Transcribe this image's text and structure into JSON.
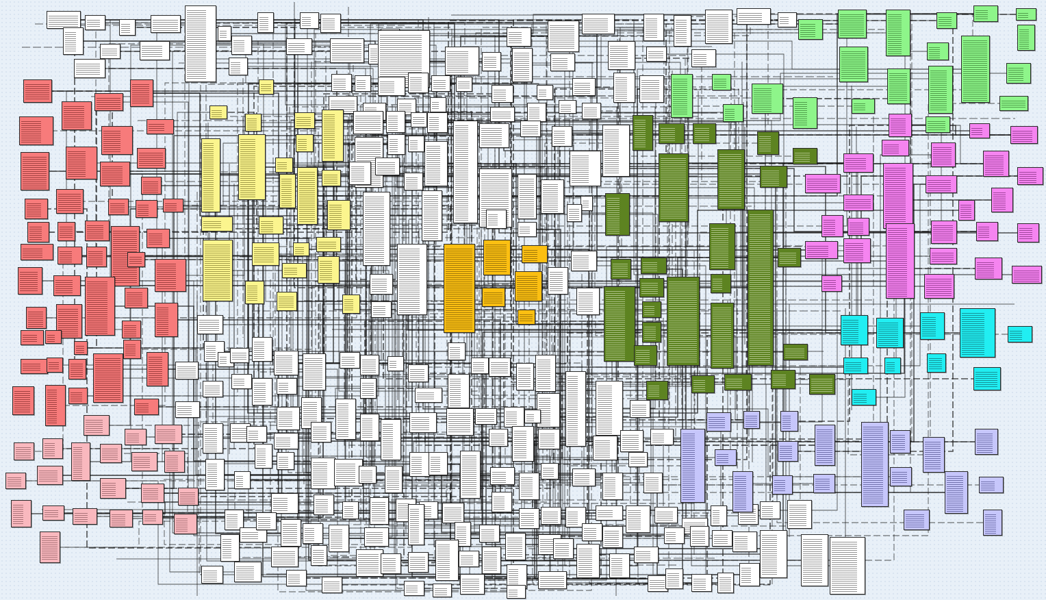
{
  "diagram": {
    "subject_areas": [
      {
        "name": "white-entities",
        "fill": "#ffffff",
        "row_color": "#3a3a3a"
      },
      {
        "name": "red-entities",
        "fill": "#f77b7b",
        "row_color": "#5a1010"
      },
      {
        "name": "pink-entities",
        "fill": "#f9b8be",
        "row_color": "#6a3a3e"
      },
      {
        "name": "yellow-entities",
        "fill": "#fbf58e",
        "row_color": "#5a5410"
      },
      {
        "name": "orange-entities",
        "fill": "#fbbf12",
        "row_color": "#5a4000"
      },
      {
        "name": "olive-entities",
        "fill": "#5d8321",
        "row_color": "#e6f0d0"
      },
      {
        "name": "green-entities",
        "fill": "#8ef58a",
        "row_color": "#1d5a18"
      },
      {
        "name": "magenta-entities",
        "fill": "#f584f0",
        "row_color": "#5a1058"
      },
      {
        "name": "cyan-entities",
        "fill": "#21eef2",
        "row_color": "#0a4a50"
      },
      {
        "name": "lavender-entities",
        "fill": "#c6c6fb",
        "row_color": "#2a2a6a"
      }
    ],
    "colors": {
      "background": "#e8f0f8",
      "connector": "#1a1a1a",
      "white": "#ffffff",
      "red": "#f77b7b",
      "pink": "#f9b8be",
      "yellow": "#fbf58e",
      "orange": "#fbbf12",
      "olive": "#5d8321",
      "green": "#8ef58a",
      "magenta": "#f584f0",
      "cyan": "#21eef2",
      "lavender": "#c6c6fb"
    }
  }
}
